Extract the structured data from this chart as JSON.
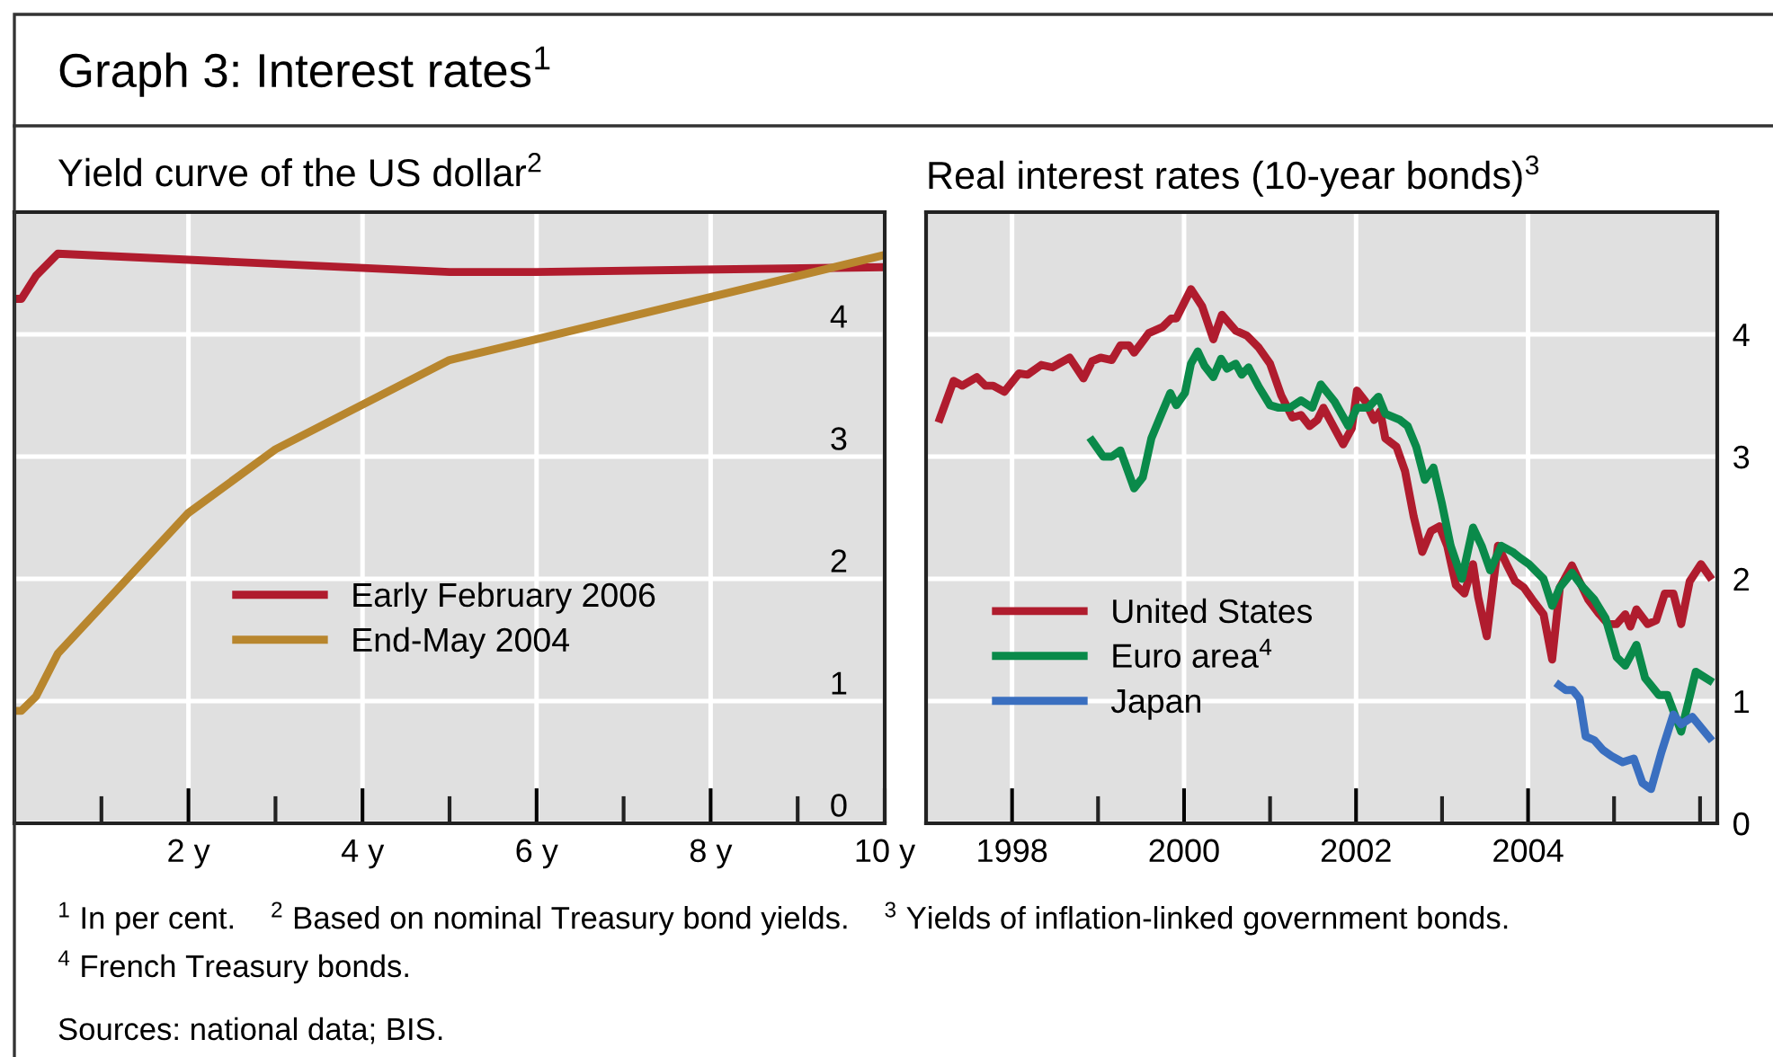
{
  "chart_data": [
    {
      "type": "line",
      "title": "Graph 3: Interest rates$^{1}$",
      "subtitle": "Yield curve of the US dollar$^{2}$",
      "series": [
        {
          "name": "Early February 2006",
          "color": "#b01c2e",
          "x": [
            0,
            0.08,
            0.25,
            0.5,
            2,
            5,
            6,
            10
          ],
          "values": [
            4.29,
            4.29,
            4.48,
            4.66,
            4.61,
            4.51,
            4.51,
            4.55
          ]
        },
        {
          "name": "End-May 2004",
          "color": "#b8862e",
          "x": [
            0,
            0.08,
            0.25,
            0.5,
            2,
            3,
            5,
            6,
            10
          ],
          "values": [
            0.92,
            0.92,
            1.04,
            1.39,
            2.54,
            3.06,
            3.79,
            3.96,
            4.65
          ]
        }
      ],
      "xlim": [
        0,
        10
      ],
      "ylim": [
        0,
        5
      ],
      "xticks": [
        {
          "value": 1,
          "label": null
        },
        {
          "value": 2,
          "label": "2 y"
        },
        {
          "value": 3,
          "label": null
        },
        {
          "value": 4,
          "label": "4 y"
        },
        {
          "value": 5,
          "label": null
        },
        {
          "value": 6,
          "label": "6 y"
        },
        {
          "value": 7,
          "label": null
        },
        {
          "value": 8,
          "label": "8 y"
        },
        {
          "value": 9,
          "label": null
        },
        {
          "value": 10,
          "label": "10 y"
        }
      ],
      "yticks": [
        0,
        1,
        2,
        3,
        4
      ],
      "grid": true,
      "legend": "lower left",
      "marker": "none",
      "line_style": "solid",
      "annotations": [
        "$^{1}$ In per cent.",
        "$^{2}$ Based on nominal Treasury bond yields.",
        "$^{3}$ Yields of inflation-linked government bonds.",
        "$^{4}$ French Treasury bonds.",
        "Sources: national data; BIS."
      ]
    },
    {
      "type": "line",
      "subtitle": "Real interest rates (10-year bonds)$^{3}$",
      "series": [
        {
          "name": "United States",
          "color": "#b01c2e",
          "x": [
            1997.16,
            1997.32,
            1997.42,
            1997.59,
            1997.69,
            1997.78,
            1997.91,
            1998.08,
            1998.18,
            1998.34,
            1998.47,
            1998.67,
            1998.83,
            1998.93,
            1999.03,
            1999.16,
            1999.26,
            1999.36,
            1999.42,
            1999.59,
            1999.75,
            1999.85,
            1999.91,
            2000.08,
            2000.21,
            2000.34,
            2000.44,
            2000.6,
            2000.73,
            2000.87,
            2001.0,
            2001.13,
            2001.26,
            2001.36,
            2001.46,
            2001.55,
            2001.62,
            2001.72,
            2001.85,
            2001.95,
            2002.01,
            2002.11,
            2002.21,
            2002.28,
            2002.34,
            2002.47,
            2002.57,
            2002.67,
            2002.77,
            2002.87,
            2002.97,
            2003.06,
            2003.16,
            2003.26,
            2003.36,
            2003.42,
            2003.52,
            2003.65,
            2003.75,
            2003.85,
            2003.95,
            2004.05,
            2004.18,
            2004.28,
            2004.37,
            2004.51,
            2004.57,
            2004.7,
            2004.83,
            2004.93,
            2005.03,
            2005.13,
            2005.19,
            2005.26,
            2005.39,
            2005.49,
            2005.59,
            2005.69,
            2005.78,
            2005.88,
            2006.01,
            2006.11
          ],
          "values": [
            3.31,
            3.62,
            3.58,
            3.65,
            3.58,
            3.58,
            3.53,
            3.68,
            3.67,
            3.75,
            3.73,
            3.81,
            3.64,
            3.78,
            3.81,
            3.79,
            3.91,
            3.91,
            3.85,
            4.01,
            4.06,
            4.13,
            4.13,
            4.37,
            4.23,
            3.96,
            4.16,
            4.03,
            3.99,
            3.89,
            3.76,
            3.5,
            3.32,
            3.34,
            3.25,
            3.3,
            3.4,
            3.27,
            3.1,
            3.23,
            3.54,
            3.45,
            3.3,
            3.37,
            3.15,
            3.08,
            2.88,
            2.51,
            2.22,
            2.39,
            2.43,
            2.27,
            1.95,
            1.88,
            2.12,
            1.85,
            1.53,
            2.27,
            2.12,
            1.98,
            1.93,
            1.83,
            1.71,
            1.34,
            1.93,
            2.11,
            2.02,
            1.83,
            1.71,
            1.63,
            1.63,
            1.71,
            1.61,
            1.75,
            1.63,
            1.66,
            1.88,
            1.88,
            1.63,
            1.98,
            2.12,
            2.02
          ]
        },
        {
          "name": "Euro area$^{4}$",
          "color": "#0a8a4a",
          "x": [
            1998.93,
            1999.06,
            1999.16,
            1999.26,
            1999.42,
            1999.52,
            1999.62,
            1999.72,
            1999.84,
            1999.91,
            2000.01,
            2000.08,
            2000.16,
            2000.24,
            2000.34,
            2000.43,
            2000.5,
            2000.6,
            2000.67,
            2000.75,
            2000.87,
            2001.0,
            2001.1,
            2001.23,
            2001.36,
            2001.49,
            2001.59,
            2001.75,
            2001.91,
            2002.01,
            2002.14,
            2002.26,
            2002.34,
            2002.51,
            2002.6,
            2002.7,
            2002.8,
            2002.9,
            2003.0,
            2003.1,
            2003.23,
            2003.36,
            2003.46,
            2003.56,
            2003.69,
            2003.82,
            2003.91,
            2004.01,
            2004.18,
            2004.28,
            2004.37,
            2004.51,
            2004.64,
            2004.77,
            2004.9,
            2005.03,
            2005.13,
            2005.26,
            2005.36,
            2005.52,
            2005.62,
            2005.78,
            2005.85,
            2005.95,
            2006.11
          ],
          "values": [
            3.13,
            3.0,
            3.0,
            3.05,
            2.74,
            2.83,
            3.15,
            3.32,
            3.52,
            3.42,
            3.52,
            3.76,
            3.86,
            3.74,
            3.65,
            3.8,
            3.72,
            3.76,
            3.67,
            3.73,
            3.57,
            3.42,
            3.4,
            3.4,
            3.46,
            3.4,
            3.59,
            3.45,
            3.25,
            3.4,
            3.4,
            3.49,
            3.35,
            3.3,
            3.25,
            3.08,
            2.81,
            2.91,
            2.61,
            2.27,
            2.0,
            2.42,
            2.27,
            2.07,
            2.27,
            2.22,
            2.17,
            2.12,
            2.0,
            1.78,
            1.93,
            2.05,
            1.93,
            1.83,
            1.68,
            1.36,
            1.29,
            1.46,
            1.19,
            1.05,
            1.05,
            0.75,
            0.95,
            1.24,
            1.17
          ]
        },
        {
          "name": "Japan",
          "color": "#3a6fc0",
          "x": [
            2004.36,
            2004.44,
            2004.52,
            2004.6,
            2004.67,
            2004.77,
            2004.87,
            2004.97,
            2005.1,
            2005.23,
            2005.33,
            2005.43,
            2005.55,
            2005.69,
            2005.78,
            2005.91,
            2006.11
          ],
          "values": [
            1.13,
            1.09,
            1.09,
            1.02,
            0.71,
            0.68,
            0.6,
            0.55,
            0.5,
            0.53,
            0.33,
            0.28,
            0.58,
            0.89,
            0.81,
            0.87,
            0.7
          ]
        }
      ],
      "xlim": [
        1997,
        2006.2
      ],
      "ylim": [
        0,
        5
      ],
      "xticks": [
        {
          "value": 1998,
          "label": "1998"
        },
        {
          "value": 1999,
          "label": null
        },
        {
          "value": 2000,
          "label": "2000"
        },
        {
          "value": 2001,
          "label": null
        },
        {
          "value": 2002,
          "label": "2002"
        },
        {
          "value": 2003,
          "label": null
        },
        {
          "value": 2004,
          "label": "2004"
        },
        {
          "value": 2005,
          "label": null
        },
        {
          "value": 2006,
          "label": null
        }
      ],
      "yticks": [
        0,
        1,
        2,
        3,
        4
      ],
      "grid": true,
      "legend": "lower left",
      "marker": "none",
      "line_style": "solid"
    }
  ]
}
